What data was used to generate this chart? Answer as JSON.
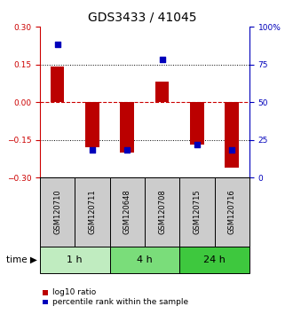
{
  "title": "GDS3433 / 41045",
  "samples": [
    "GSM120710",
    "GSM120711",
    "GSM120648",
    "GSM120708",
    "GSM120715",
    "GSM120716"
  ],
  "log10_ratio": [
    0.14,
    -0.18,
    -0.2,
    0.08,
    -0.17,
    -0.26
  ],
  "percentile_rank": [
    88,
    18,
    18,
    78,
    22,
    18
  ],
  "groups": [
    {
      "label": "1 h",
      "indices": [
        0,
        1
      ],
      "color": "#c0ecc0"
    },
    {
      "label": "4 h",
      "indices": [
        2,
        3
      ],
      "color": "#7add7a"
    },
    {
      "label": "24 h",
      "indices": [
        4,
        5
      ],
      "color": "#3ec83e"
    }
  ],
  "ylim_left": [
    -0.3,
    0.3
  ],
  "ylim_right": [
    0,
    100
  ],
  "yticks_left": [
    -0.3,
    -0.15,
    0,
    0.15,
    0.3
  ],
  "yticks_right": [
    0,
    25,
    50,
    75,
    100
  ],
  "ytick_labels_right": [
    "0",
    "25",
    "50",
    "75",
    "100%"
  ],
  "hlines": [
    0.15,
    -0.15
  ],
  "zero_line_color": "#cc0000",
  "bar_color": "#bb0000",
  "dot_color": "#0000bb",
  "bar_width": 0.4,
  "dot_size": 18,
  "background_color": "#ffffff",
  "plot_bg_color": "#ffffff",
  "left_tick_color": "#cc0000",
  "right_tick_color": "#0000bb",
  "title_fontsize": 10,
  "tick_fontsize": 6.5,
  "sample_label_fontsize": 6,
  "group_label_fontsize": 8,
  "legend_fontsize": 6.5,
  "time_label_fontsize": 7.5,
  "legend_items": [
    "log10 ratio",
    "percentile rank within the sample"
  ],
  "sample_box_color": "#cccccc",
  "n_samples": 6
}
